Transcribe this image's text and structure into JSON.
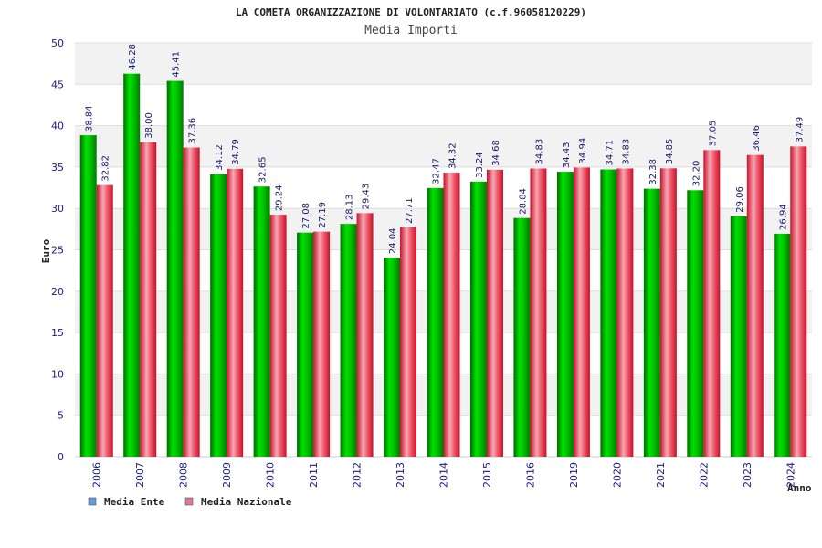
{
  "chart_data": {
    "type": "bar",
    "title": "LA COMETA ORGANIZZAZIONE DI VOLONTARIATO (c.f.96058120229)",
    "subtitle": "Media Importi",
    "xlabel": "Anno",
    "ylabel": "Euro",
    "ylim": [
      0,
      50
    ],
    "yticks": [
      "0",
      "5",
      "10",
      "15",
      "20",
      "25",
      "30",
      "35",
      "40",
      "45",
      "50"
    ],
    "grid": true,
    "legend_position": "bottom-left",
    "categories": [
      "2006",
      "2007",
      "2008",
      "2009",
      "2010",
      "2011",
      "2012",
      "2013",
      "2014",
      "2015",
      "2016",
      "2019",
      "2020",
      "2021",
      "2022",
      "2023",
      "2024"
    ],
    "series": [
      {
        "name": "Media Ente",
        "color": "#00aa00",
        "legend_color": "#6699dd",
        "values": [
          38.84,
          46.28,
          45.41,
          34.12,
          32.65,
          27.08,
          28.13,
          24.04,
          32.47,
          33.24,
          28.84,
          34.43,
          34.71,
          32.38,
          32.2,
          29.06,
          26.94
        ],
        "labels": [
          "38.84",
          "46.28",
          "45.41",
          "34.12",
          "32.65",
          "27.08",
          "28.13",
          "24.04",
          "32.47",
          "33.24",
          "28.84",
          "34.43",
          "34.71",
          "32.38",
          "32.20",
          "29.06",
          "26.94"
        ]
      },
      {
        "name": "Media Nazionale",
        "color": "#e8283c",
        "legend_color": "#dd7799",
        "values": [
          32.82,
          38.0,
          37.36,
          34.79,
          29.24,
          27.19,
          29.43,
          27.71,
          34.32,
          34.68,
          34.83,
          34.94,
          34.83,
          34.85,
          37.05,
          36.46,
          37.49
        ],
        "labels": [
          "32.82",
          "38.00",
          "37.36",
          "34.79",
          "29.24",
          "27.19",
          "29.43",
          "27.71",
          "34.32",
          "34.68",
          "34.83",
          "34.94",
          "34.83",
          "34.85",
          "37.05",
          "36.46",
          "37.49"
        ]
      }
    ]
  }
}
